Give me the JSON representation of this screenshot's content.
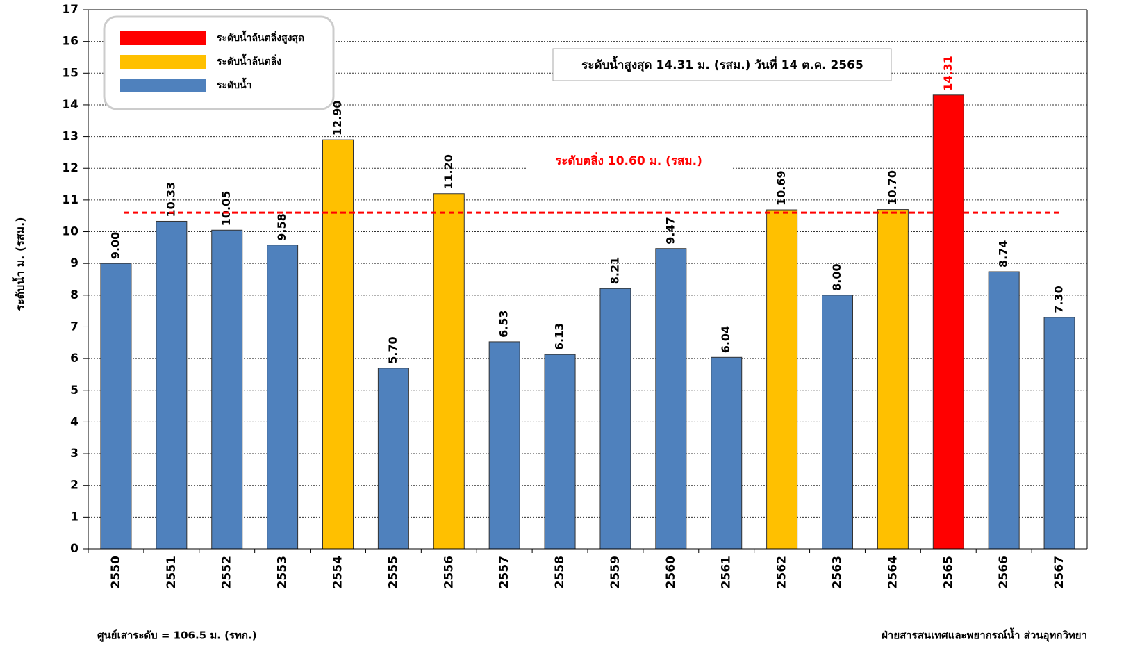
{
  "chart_data": {
    "type": "bar",
    "y_label": "ระดับน้ำ ม. (รสม.)",
    "categories": [
      "2550",
      "2551",
      "2552",
      "2553",
      "2554",
      "2555",
      "2556",
      "2557",
      "2558",
      "2559",
      "2560",
      "2561",
      "2562",
      "2563",
      "2564",
      "2565",
      "2566",
      "2567"
    ],
    "series": [
      {
        "name": "ระดับน้ำล้นตลิ่งสูงสุด",
        "color": "#ff0000",
        "values": [
          null,
          null,
          null,
          null,
          null,
          null,
          null,
          null,
          null,
          null,
          null,
          null,
          null,
          null,
          null,
          14.31,
          null,
          null
        ],
        "value_labels": [
          null,
          null,
          null,
          null,
          null,
          null,
          null,
          null,
          null,
          null,
          null,
          null,
          null,
          null,
          null,
          "14.31",
          null,
          null
        ]
      },
      {
        "name": "ระดับน้ำล้นตลิ่ง",
        "color": "#ffc000",
        "values": [
          null,
          null,
          null,
          null,
          12.9,
          null,
          11.2,
          null,
          null,
          null,
          null,
          null,
          10.69,
          null,
          10.7,
          null,
          null,
          null
        ],
        "value_labels": [
          null,
          null,
          null,
          null,
          "12.90",
          null,
          "11.20",
          null,
          null,
          null,
          null,
          null,
          "10.69",
          null,
          "10.70",
          null,
          null,
          null
        ]
      },
      {
        "name": "ระดับน้ำ",
        "color": "#4f81bd",
        "values": [
          9,
          10.33,
          10.05,
          9.58,
          null,
          5.7,
          null,
          6.53,
          6.13,
          8.21,
          9.47,
          6.04,
          null,
          8,
          null,
          null,
          8.74,
          7.3
        ],
        "value_labels": [
          "9.00",
          "10.33",
          "10.05",
          "9.58",
          null,
          "5.70",
          null,
          "6.53",
          "6.13",
          "8.21",
          "9.47",
          "6.04",
          null,
          "8.00",
          null,
          null,
          "8.74",
          "7.30"
        ]
      }
    ],
    "threshold": {
      "value": 10.6,
      "label": "ระดับตลิ่ง 10.60 ม. (รสม.)",
      "color": "#ff0000"
    },
    "annotation": "ระดับน้ำสูงสุด 14.31 ม. (รสม.) วันที่ 14 ต.ค. 2565",
    "ylim": [
      0,
      17
    ],
    "yticks": [
      0,
      1,
      2,
      3,
      4,
      5,
      6,
      7,
      8,
      9,
      10,
      11,
      12,
      13,
      14,
      15,
      16,
      17
    ],
    "grid": true,
    "legend": "top-left"
  },
  "footer": {
    "left": "ศูนย์เสาระดับ = 106.5 ม. (รทก.)",
    "right": "ฝ่ายสารสนเทศและพยากรณ์น้ำ ส่วนอุทกวิทยา"
  }
}
